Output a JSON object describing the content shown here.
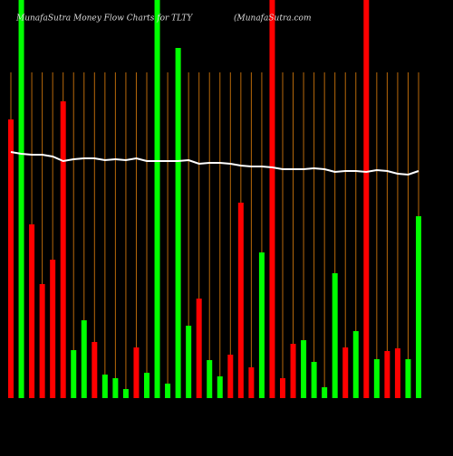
{
  "chart_data": {
    "type": "bar",
    "title": "MunafaSutra  Money Flow  Charts for TLTY",
    "subtitle": "(MunafaSutra.com",
    "ylim": [
      0,
      440
    ],
    "line_color": "#ffffff",
    "guide_color": "#b8690a",
    "values": [
      308,
      440,
      192,
      126,
      153,
      328,
      53,
      86,
      62,
      26,
      22,
      10,
      56,
      28,
      440,
      16,
      387,
      80,
      110,
      42,
      24,
      48,
      216,
      34,
      161,
      440,
      22,
      60,
      64,
      40,
      12,
      138,
      56,
      74,
      440,
      43,
      52,
      55,
      43,
      201
    ],
    "colors": [
      "#ff0000",
      "#00ff00",
      "#ff0000",
      "#ff0000",
      "#ff0000",
      "#ff0000",
      "#00ff00",
      "#00ff00",
      "#ff0000",
      "#00ff00",
      "#00ff00",
      "#00ff00",
      "#ff0000",
      "#00ff00",
      "#00ff00",
      "#00ff00",
      "#00ff00",
      "#00ff00",
      "#ff0000",
      "#00ff00",
      "#00ff00",
      "#ff0000",
      "#ff0000",
      "#ff0000",
      "#00ff00",
      "#ff0000",
      "#ff0000",
      "#ff0000",
      "#00ff00",
      "#00ff00",
      "#00ff00",
      "#00ff00",
      "#ff0000",
      "#00ff00",
      "#ff0000",
      "#00ff00",
      "#ff0000",
      "#ff0000",
      "#00ff00",
      "#00ff00"
    ],
    "line_values": [
      272,
      270,
      269,
      269,
      267,
      262,
      264,
      265,
      265,
      263,
      264,
      263,
      265,
      262,
      262,
      262,
      262,
      263,
      259,
      260,
      260,
      259,
      257,
      256,
      256,
      255,
      253,
      253,
      253,
      254,
      253,
      250,
      251,
      251,
      250,
      252,
      251,
      248,
      247,
      251
    ]
  }
}
